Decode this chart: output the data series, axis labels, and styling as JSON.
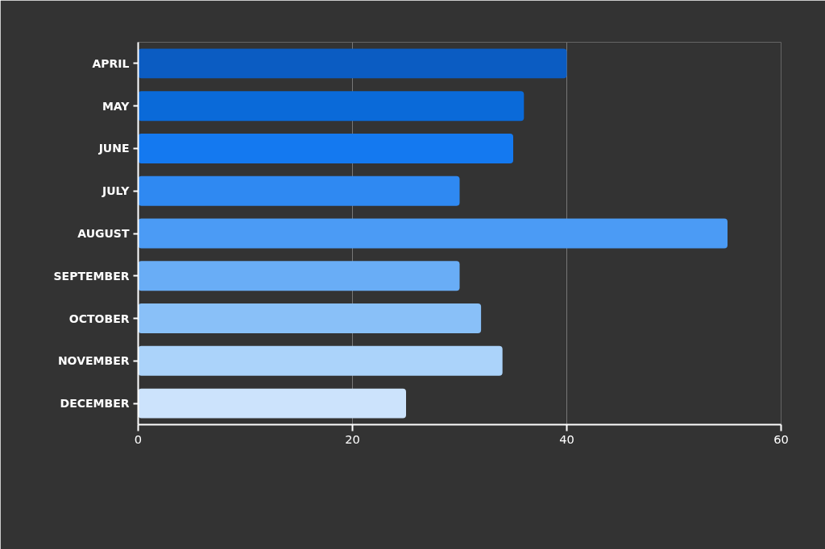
{
  "chart_data": {
    "type": "bar",
    "orientation": "horizontal",
    "categories": [
      "APRIL",
      "MAY",
      "JUNE",
      "JULY",
      "AUGUST",
      "SEPTEMBER",
      "OCTOBER",
      "NOVEMBER",
      "DECEMBER"
    ],
    "values": [
      40,
      36,
      35,
      30,
      55,
      30,
      32,
      34,
      25
    ],
    "colors": [
      "#0b5cc2",
      "#0a6ad9",
      "#1479f0",
      "#2f89f2",
      "#4b9bf5",
      "#69adf6",
      "#89c0f8",
      "#abd3fa",
      "#cce3fc"
    ],
    "xlim": [
      0,
      60
    ],
    "xticks": [
      0,
      20,
      40,
      60
    ],
    "grid": "x"
  }
}
